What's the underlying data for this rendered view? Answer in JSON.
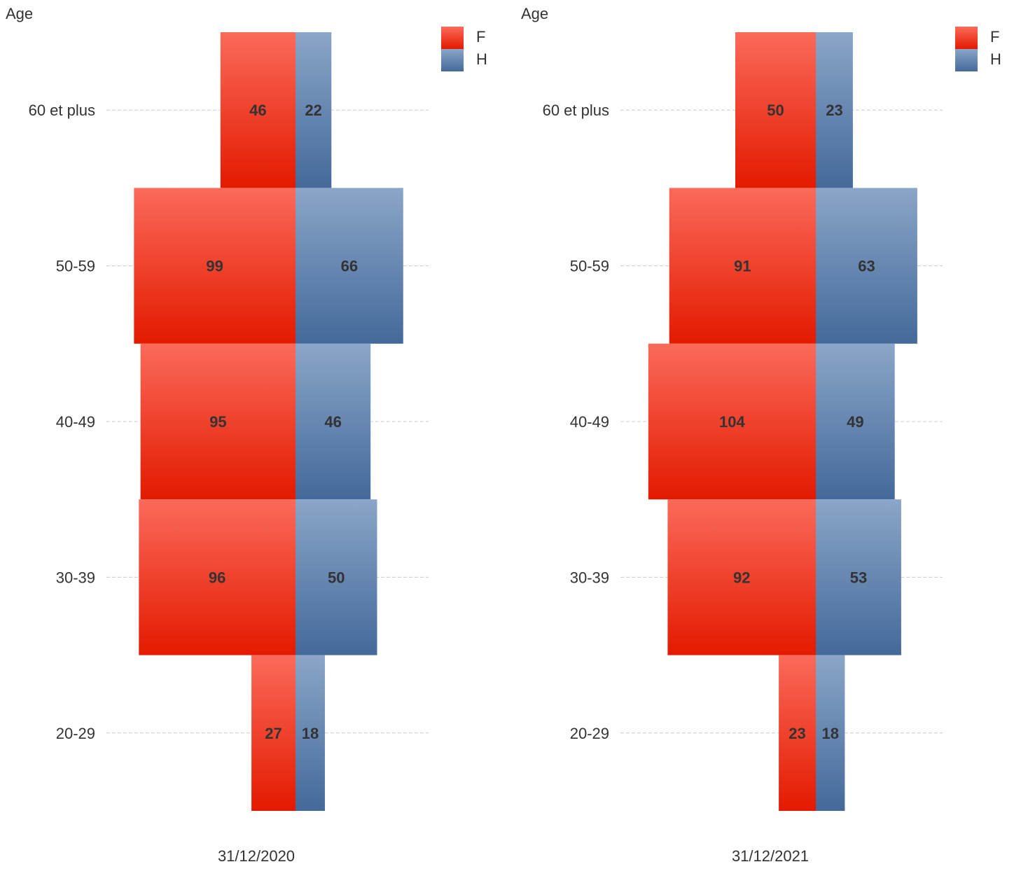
{
  "chart_data": [
    {
      "type": "bar",
      "orientation": "horizontal",
      "ylabel": "Age",
      "xlabel": "31/12/2020",
      "categories": [
        "60 et plus",
        "50-59",
        "40-49",
        "30-39",
        "20-29"
      ],
      "series": [
        {
          "name": "F",
          "values": [
            46,
            99,
            95,
            96,
            27
          ]
        },
        {
          "name": "H",
          "values": [
            22,
            66,
            46,
            50,
            18
          ]
        }
      ],
      "legend": {
        "entries": [
          "F",
          "H"
        ],
        "placement": "top-right"
      },
      "grid": true
    },
    {
      "type": "bar",
      "orientation": "horizontal",
      "ylabel": "Age",
      "xlabel": "31/12/2021",
      "categories": [
        "60 et plus",
        "50-59",
        "40-49",
        "30-39",
        "20-29"
      ],
      "series": [
        {
          "name": "F",
          "values": [
            50,
            91,
            104,
            92,
            23
          ]
        },
        {
          "name": "H",
          "values": [
            23,
            63,
            49,
            53,
            18
          ]
        }
      ],
      "legend": {
        "entries": [
          "F",
          "H"
        ],
        "placement": "top-right"
      },
      "grid": true
    }
  ],
  "colors": {
    "F_top": "#fb6a5a",
    "F_bottom": "#e31a00",
    "H_top": "#8aa6c8",
    "H_bottom": "#44699a"
  }
}
